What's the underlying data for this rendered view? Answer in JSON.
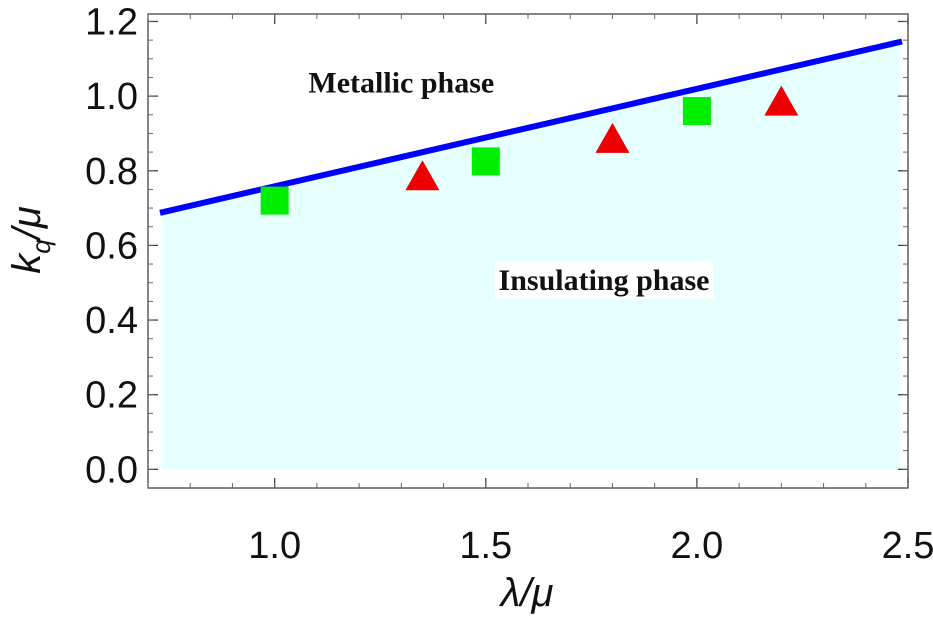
{
  "chart_data": {
    "type": "scatter",
    "title": "",
    "xlabel": "λ/μ",
    "ylabel_parts": {
      "main": "k",
      "sub": "q",
      "rest": "/μ"
    },
    "xlim": [
      0.7,
      2.5
    ],
    "ylim": [
      -0.05,
      1.22
    ],
    "x_ticks": [
      "1.0",
      "1.5",
      "2.0",
      "2.5"
    ],
    "y_ticks": [
      "0.0",
      "0.2",
      "0.4",
      "0.6",
      "0.8",
      "1.0",
      "1.2"
    ],
    "boundary_line": {
      "color": "#0000ff",
      "points": [
        [
          0.7,
          0.68
        ],
        [
          2.5,
          1.15
        ]
      ]
    },
    "shaded_region": {
      "color": "#e6ffff",
      "ymin": 0.0
    },
    "regions": [
      {
        "label": "Metallic phase",
        "x": 1.3,
        "y": 1.01
      },
      {
        "label": "Insulating phase",
        "x": 1.78,
        "y": 0.48
      }
    ],
    "series": [
      {
        "marker": "square",
        "color": "#00ee00",
        "x": [
          1.0,
          1.5,
          2.0
        ],
        "y": [
          0.72,
          0.825,
          0.96
        ]
      },
      {
        "marker": "triangle",
        "color": "#ee0000",
        "x": [
          1.35,
          1.8,
          2.2
        ],
        "y": [
          0.78,
          0.88,
          0.98
        ]
      }
    ]
  }
}
